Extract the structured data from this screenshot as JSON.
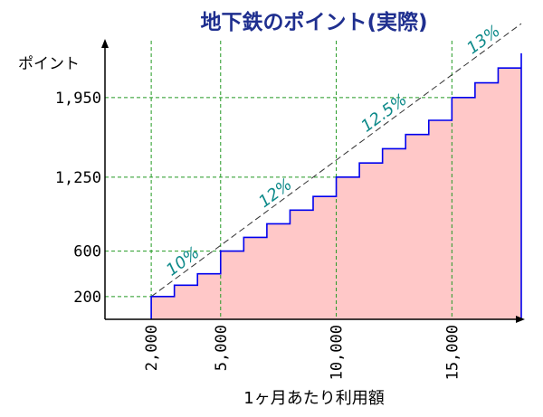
{
  "chart_data": {
    "type": "area",
    "title": "地下鉄のポイント(実際)",
    "ylabel": "ポイント",
    "xlabel": "1ヶ月あたり利用額",
    "x_ticks": [
      {
        "value": 2000,
        "label": "2,000"
      },
      {
        "value": 5000,
        "label": "5,000"
      },
      {
        "value": 10000,
        "label": "10,000"
      },
      {
        "value": 15000,
        "label": "15,000"
      }
    ],
    "y_ticks": [
      {
        "value": 200,
        "label": "200"
      },
      {
        "value": 600,
        "label": "600"
      },
      {
        "value": 1250,
        "label": "1,250"
      },
      {
        "value": 1950,
        "label": "1,950"
      }
    ],
    "xlim": [
      0,
      18000
    ],
    "ylim": [
      0,
      2450
    ],
    "step_x": [
      2000,
      3000,
      4000,
      5000,
      6000,
      7000,
      8000,
      9000,
      10000,
      11000,
      12000,
      13000,
      14000,
      15000,
      16000,
      17000,
      18000,
      18000
    ],
    "step_y": [
      200,
      300,
      400,
      600,
      720,
      840,
      960,
      1080,
      1250,
      1375,
      1500,
      1625,
      1750,
      1950,
      2080,
      2210,
      2340,
      2340
    ],
    "trend_line": {
      "x": [
        2000,
        18000
      ],
      "y": [
        200,
        2600
      ]
    },
    "rate_labels": [
      {
        "text": "10%",
        "x": 3500
      },
      {
        "text": "12%",
        "x": 7500
      },
      {
        "text": "12.5%",
        "x": 12200
      },
      {
        "text": "13%",
        "x": 16500
      }
    ],
    "fill_color": "#ffc8c8",
    "step_color": "#0000ee",
    "grid_color": "#229922",
    "title_color": "#1f2f8f",
    "rate_color": "#0e8a8a",
    "grid": true
  }
}
